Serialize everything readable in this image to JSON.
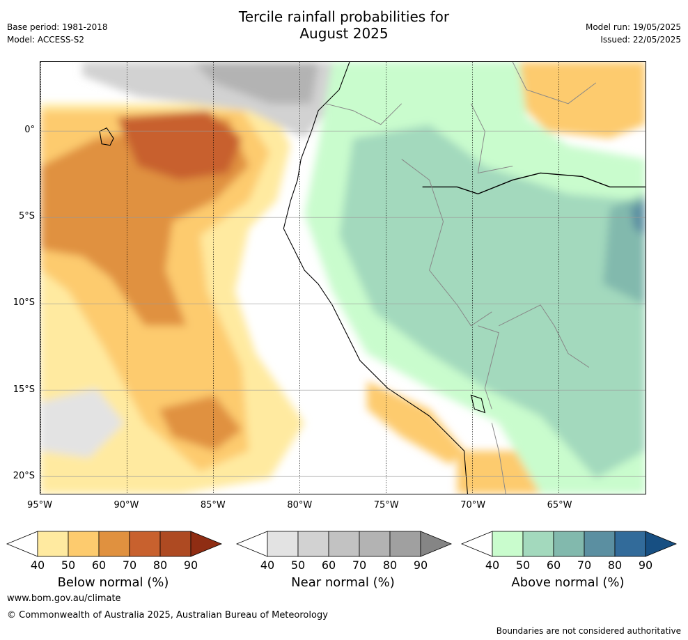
{
  "title_line1": "Tercile rainfall probabilities for",
  "title_line2": "August 2025",
  "meta_left": [
    "Base period: 1981-2018",
    "Model: ACCESS-S2"
  ],
  "meta_right": [
    "Model run: 19/05/2025",
    "Issued: 22/05/2025"
  ],
  "map": {
    "lat_labels": [
      "0°",
      "5°S",
      "10°S",
      "15°S",
      "20°S"
    ],
    "lon_labels": [
      "95°W",
      "90°W",
      "85°W",
      "80°W",
      "75°W",
      "70°W",
      "65°W"
    ],
    "lat_values": [
      0,
      -5,
      -10,
      -15,
      -20
    ],
    "lon_values": [
      -95,
      -90,
      -85,
      -80,
      -75,
      -70,
      -65
    ],
    "extent": {
      "lon_min": -95,
      "lon_max": -60,
      "lat_min": -21,
      "lat_max": 4
    }
  },
  "colorbars": [
    {
      "name": "Below normal (%)",
      "ticks": [
        "40",
        "50",
        "60",
        "70",
        "80",
        "90"
      ],
      "colors": [
        "#ffffff",
        "#ffeaa0",
        "#fdcb6e",
        "#e0913f",
        "#c8612e",
        "#ae4a22",
        "#8f2d13"
      ]
    },
    {
      "name": "Near normal (%)",
      "ticks": [
        "40",
        "50",
        "60",
        "70",
        "80",
        "90"
      ],
      "colors": [
        "#ffffff",
        "#e3e3e3",
        "#d2d2d2",
        "#c2c2c2",
        "#b3b3b3",
        "#a0a0a0",
        "#858585"
      ]
    },
    {
      "name": "Above normal (%)",
      "ticks": [
        "40",
        "50",
        "60",
        "70",
        "80",
        "90"
      ],
      "colors": [
        "#ffffff",
        "#c9fccd",
        "#a3d9bd",
        "#82b9ad",
        "#5b8fa1",
        "#326b9a",
        "#174f82"
      ]
    }
  ],
  "footer": {
    "url": "www.bom.gov.au/climate",
    "copyright": "© Commonwealth of Australia 2025, Australian Bureau of Meteorology",
    "disclaimer": "Boundaries are not considered authoritative"
  }
}
